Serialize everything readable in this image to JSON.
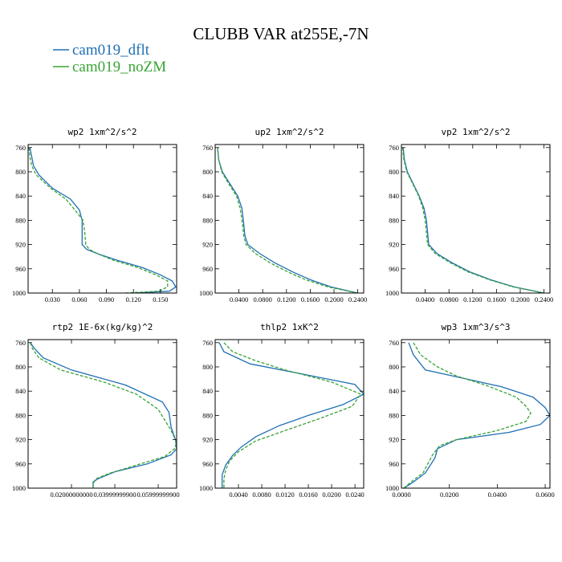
{
  "figure": {
    "title": "CLUBB VAR at255E,-7N",
    "legend": [
      {
        "name": "cam019_dflt",
        "color": "#1f6fb4",
        "dash": "solid"
      },
      {
        "name": "cam019_noZM",
        "color": "#3aa335",
        "dash": "dashed"
      }
    ]
  },
  "chart_data": [
    {
      "type": "line",
      "title": "wp2  1xm^2/s^2",
      "ylim": [
        1000,
        755
      ],
      "y_ticks": [
        760,
        800,
        840,
        880,
        920,
        960,
        1000
      ],
      "xlim": [
        0.003,
        0.168
      ],
      "x_ticks": [
        0.03,
        0.06,
        0.09,
        0.12,
        0.15
      ],
      "x_tick_labels": [
        "0.030",
        "0.060",
        "0.090",
        "0.120",
        "0.150"
      ],
      "series": [
        {
          "name": "cam019_dflt",
          "points": [
            [
              0.005,
              760
            ],
            [
              0.007,
              775
            ],
            [
              0.009,
              790
            ],
            [
              0.015,
              805
            ],
            [
              0.03,
              827
            ],
            [
              0.05,
              845
            ],
            [
              0.06,
              863
            ],
            [
              0.063,
              880
            ],
            [
              0.063,
              900
            ],
            [
              0.063,
              920
            ],
            [
              0.068,
              928
            ],
            [
              0.08,
              935
            ],
            [
              0.1,
              945
            ],
            [
              0.13,
              958
            ],
            [
              0.15,
              970
            ],
            [
              0.163,
              980
            ],
            [
              0.167,
              990
            ],
            [
              0.16,
              997
            ],
            [
              0.12,
              1000
            ]
          ]
        },
        {
          "name": "cam019_noZM",
          "points": [
            [
              0.004,
              760
            ],
            [
              0.005,
              775
            ],
            [
              0.007,
              790
            ],
            [
              0.012,
              805
            ],
            [
              0.028,
              827
            ],
            [
              0.045,
              845
            ],
            [
              0.055,
              863
            ],
            [
              0.064,
              880
            ],
            [
              0.066,
              900
            ],
            [
              0.067,
              920
            ],
            [
              0.071,
              928
            ],
            [
              0.08,
              935
            ],
            [
              0.096,
              945
            ],
            [
              0.125,
              958
            ],
            [
              0.145,
              970
            ],
            [
              0.158,
              980
            ],
            [
              0.158,
              990
            ],
            [
              0.148,
              997
            ],
            [
              0.11,
              1000
            ]
          ]
        }
      ]
    },
    {
      "type": "line",
      "title": "up2  1xm^2/s^2",
      "ylim": [
        1000,
        755
      ],
      "y_ticks": [
        760,
        800,
        840,
        880,
        920,
        960,
        1000
      ],
      "xlim": [
        0.0,
        0.25
      ],
      "x_ticks": [
        0.04,
        0.08,
        0.12,
        0.16,
        0.2,
        0.24
      ],
      "x_tick_labels": [
        "0.0400",
        "0.0800",
        "0.1200",
        "0.1600",
        "0.2000",
        "0.2400"
      ],
      "series": [
        {
          "name": "cam019_dflt",
          "points": [
            [
              0.004,
              760
            ],
            [
              0.006,
              780
            ],
            [
              0.012,
              800
            ],
            [
              0.025,
              820
            ],
            [
              0.038,
              840
            ],
            [
              0.045,
              860
            ],
            [
              0.048,
              885
            ],
            [
              0.05,
              905
            ],
            [
              0.055,
              920
            ],
            [
              0.075,
              935
            ],
            [
              0.1,
              950
            ],
            [
              0.13,
              965
            ],
            [
              0.16,
              978
            ],
            [
              0.195,
              990
            ],
            [
              0.24,
              1000
            ]
          ]
        },
        {
          "name": "cam019_noZM",
          "points": [
            [
              0.004,
              760
            ],
            [
              0.006,
              780
            ],
            [
              0.011,
              800
            ],
            [
              0.023,
              820
            ],
            [
              0.036,
              840
            ],
            [
              0.042,
              860
            ],
            [
              0.046,
              885
            ],
            [
              0.048,
              905
            ],
            [
              0.052,
              920
            ],
            [
              0.068,
              935
            ],
            [
              0.092,
              950
            ],
            [
              0.122,
              965
            ],
            [
              0.152,
              978
            ],
            [
              0.19,
              990
            ],
            [
              0.24,
              1000
            ]
          ]
        }
      ]
    },
    {
      "type": "line",
      "title": "vp2  1xm^2/s^2",
      "ylim": [
        1000,
        755
      ],
      "y_ticks": [
        760,
        800,
        840,
        880,
        920,
        960,
        1000
      ],
      "xlim": [
        0.0,
        0.25
      ],
      "x_ticks": [
        0.04,
        0.08,
        0.12,
        0.16,
        0.2,
        0.24
      ],
      "x_tick_labels": [
        "0.0400",
        "0.0800",
        "0.1200",
        "0.1600",
        "0.2000",
        "0.2400"
      ],
      "series": [
        {
          "name": "cam019_dflt",
          "points": [
            [
              0.003,
              760
            ],
            [
              0.005,
              780
            ],
            [
              0.01,
              800
            ],
            [
              0.02,
              820
            ],
            [
              0.03,
              840
            ],
            [
              0.038,
              860
            ],
            [
              0.042,
              880
            ],
            [
              0.044,
              900
            ],
            [
              0.046,
              920
            ],
            [
              0.06,
              935
            ],
            [
              0.085,
              950
            ],
            [
              0.115,
              965
            ],
            [
              0.15,
              978
            ],
            [
              0.19,
              990
            ],
            [
              0.24,
              1000
            ]
          ]
        },
        {
          "name": "cam019_noZM",
          "points": [
            [
              0.002,
              760
            ],
            [
              0.004,
              780
            ],
            [
              0.009,
              800
            ],
            [
              0.019,
              820
            ],
            [
              0.029,
              840
            ],
            [
              0.036,
              860
            ],
            [
              0.04,
              880
            ],
            [
              0.042,
              900
            ],
            [
              0.044,
              920
            ],
            [
              0.057,
              935
            ],
            [
              0.082,
              950
            ],
            [
              0.112,
              965
            ],
            [
              0.148,
              978
            ],
            [
              0.188,
              990
            ],
            [
              0.24,
              1000
            ]
          ]
        }
      ]
    },
    {
      "type": "line",
      "title": "rtp2  1E-6x(kg/kg)^2",
      "ylim": [
        1000,
        755
      ],
      "y_ticks": [
        760,
        800,
        840,
        880,
        920,
        960,
        1000
      ],
      "xlim": [
        0.0,
        0.0685
      ],
      "x_ticks": [
        0.02,
        0.04,
        0.06
      ],
      "x_tick_labels": [
        "0.02000000000",
        "0.03999999900",
        "0.05999999900"
      ],
      "series": [
        {
          "name": "cam019_dflt",
          "points": [
            [
              0.001,
              760
            ],
            [
              0.003,
              770
            ],
            [
              0.007,
              785
            ],
            [
              0.02,
              805
            ],
            [
              0.045,
              830
            ],
            [
              0.062,
              858
            ],
            [
              0.065,
              875
            ],
            [
              0.066,
              900
            ],
            [
              0.068,
              920
            ],
            [
              0.0685,
              935
            ],
            [
              0.066,
              945
            ],
            [
              0.055,
              960
            ],
            [
              0.04,
              973
            ],
            [
              0.032,
              985
            ],
            [
              0.03,
              990
            ],
            [
              0.03,
              1000
            ]
          ]
        },
        {
          "name": "cam019_noZM",
          "points": [
            [
              0.001,
              760
            ],
            [
              0.002,
              770
            ],
            [
              0.005,
              785
            ],
            [
              0.015,
              805
            ],
            [
              0.035,
              825
            ],
            [
              0.05,
              845
            ],
            [
              0.06,
              870
            ],
            [
              0.066,
              905
            ],
            [
              0.0685,
              925
            ],
            [
              0.0675,
              935
            ],
            [
              0.063,
              948
            ],
            [
              0.05,
              962
            ],
            [
              0.038,
              975
            ],
            [
              0.031,
              985
            ],
            [
              0.03,
              995
            ],
            [
              0.03,
              1000
            ]
          ]
        }
      ]
    },
    {
      "type": "line",
      "title": "thlp2  1xK^2",
      "ylim": [
        1000,
        755
      ],
      "y_ticks": [
        760,
        800,
        840,
        880,
        920,
        960,
        1000
      ],
      "xlim": [
        0.0,
        0.0255
      ],
      "x_ticks": [
        0.004,
        0.008,
        0.012,
        0.016,
        0.02,
        0.024
      ],
      "x_tick_labels": [
        "0.0040",
        "0.0080",
        "0.0120",
        "0.0160",
        "0.0200",
        "0.0240"
      ],
      "series": [
        {
          "name": "cam019_dflt",
          "points": [
            [
              0.0007,
              760
            ],
            [
              0.0015,
              775
            ],
            [
              0.006,
              795
            ],
            [
              0.014,
              810
            ],
            [
              0.024,
              829
            ],
            [
              0.0255,
              845
            ],
            [
              0.022,
              862
            ],
            [
              0.016,
              880
            ],
            [
              0.011,
              897
            ],
            [
              0.007,
              915
            ],
            [
              0.0045,
              932
            ],
            [
              0.003,
              946
            ],
            [
              0.0018,
              962
            ],
            [
              0.0012,
              978
            ],
            [
              0.0012,
              1000
            ]
          ]
        },
        {
          "name": "cam019_noZM",
          "points": [
            [
              0.0015,
              760
            ],
            [
              0.003,
              775
            ],
            [
              0.007,
              790
            ],
            [
              0.012,
              805
            ],
            [
              0.02,
              825
            ],
            [
              0.025,
              845
            ],
            [
              0.0235,
              865
            ],
            [
              0.018,
              885
            ],
            [
              0.012,
              905
            ],
            [
              0.007,
              922
            ],
            [
              0.004,
              940
            ],
            [
              0.0025,
              955
            ],
            [
              0.0018,
              970
            ],
            [
              0.0015,
              985
            ],
            [
              0.0015,
              1000
            ]
          ]
        }
      ]
    },
    {
      "type": "line",
      "title": "wp3  1xm^3/s^3",
      "ylim": [
        1000,
        755
      ],
      "y_ticks": [
        760,
        800,
        840,
        880,
        920,
        960,
        1000
      ],
      "xlim": [
        0.0,
        0.062
      ],
      "x_ticks": [
        0.0,
        0.02,
        0.04,
        0.06
      ],
      "x_tick_labels": [
        "0.0000",
        "0.0200",
        "0.0400",
        "0.0600"
      ],
      "series": [
        {
          "name": "cam019_dflt",
          "points": [
            [
              0.003,
              760
            ],
            [
              0.005,
              780
            ],
            [
              0.01,
              805
            ],
            [
              0.025,
              818
            ],
            [
              0.042,
              833
            ],
            [
              0.055,
              850
            ],
            [
              0.06,
              867
            ],
            [
              0.062,
              880
            ],
            [
              0.058,
              895
            ],
            [
              0.045,
              908
            ],
            [
              0.023,
              920
            ],
            [
              0.015,
              935
            ],
            [
              0.014,
              950
            ],
            [
              0.01,
              975
            ],
            [
              0.005,
              990
            ],
            [
              0.001,
              1000
            ]
          ]
        },
        {
          "name": "cam019_noZM",
          "points": [
            [
              0.005,
              760
            ],
            [
              0.008,
              780
            ],
            [
              0.015,
              800
            ],
            [
              0.023,
              815
            ],
            [
              0.035,
              830
            ],
            [
              0.048,
              850
            ],
            [
              0.052,
              865
            ],
            [
              0.054,
              876
            ],
            [
              0.052,
              890
            ],
            [
              0.04,
              905
            ],
            [
              0.023,
              920
            ],
            [
              0.016,
              930
            ],
            [
              0.013,
              945
            ],
            [
              0.009,
              975
            ],
            [
              0.004,
              990
            ],
            [
              0.001,
              1000
            ]
          ]
        }
      ]
    }
  ]
}
